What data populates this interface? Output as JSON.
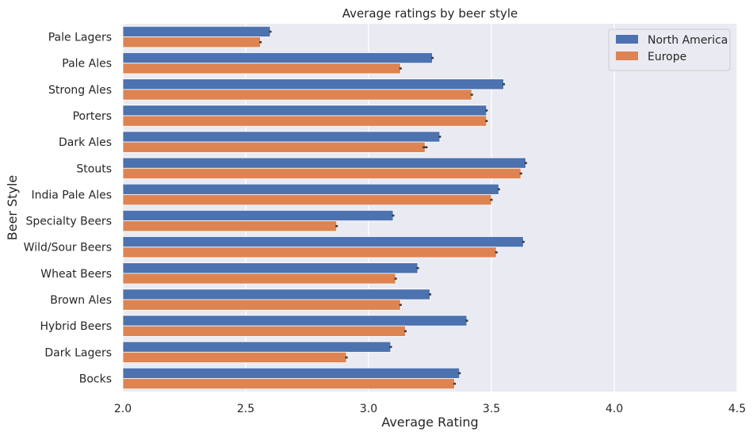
{
  "chart_data": {
    "type": "bar",
    "orientation": "horizontal",
    "title": "Average ratings by beer style",
    "xlabel": "Average Rating",
    "ylabel": "Beer Style",
    "xlim": [
      2.0,
      4.5
    ],
    "xticks": [
      "2.0",
      "2.5",
      "3.0",
      "3.5",
      "4.0",
      "4.5"
    ],
    "grid": true,
    "legend_position": "top-right",
    "categories": [
      "Pale Lagers",
      "Pale Ales",
      "Strong Ales",
      "Porters",
      "Dark Ales",
      "Stouts",
      "India Pale Ales",
      "Specialty Beers",
      "Wild/Sour Beers",
      "Wheat Beers",
      "Brown Ales",
      "Hybrid Beers",
      "Dark Lagers",
      "Bocks"
    ],
    "series": [
      {
        "name": "North America",
        "color": "#4c72b0",
        "values": [
          2.6,
          3.26,
          3.55,
          3.48,
          3.29,
          3.64,
          3.53,
          3.1,
          3.63,
          3.2,
          3.25,
          3.4,
          3.09,
          3.37
        ],
        "errors": [
          0.005,
          0.0,
          0.005,
          0.005,
          0.005,
          0.0,
          0.0,
          0.005,
          0.005,
          0.005,
          0.005,
          0.005,
          0.005,
          0.005
        ]
      },
      {
        "name": "Europe",
        "color": "#dd8452",
        "values": [
          2.56,
          3.13,
          3.42,
          3.48,
          3.23,
          3.62,
          3.5,
          2.87,
          3.52,
          3.11,
          3.13,
          3.15,
          2.91,
          3.35
        ],
        "errors": [
          0.005,
          0.005,
          0.005,
          0.005,
          0.01,
          0.005,
          0.005,
          0.005,
          0.005,
          0.005,
          0.005,
          0.005,
          0.005,
          0.005
        ]
      }
    ]
  },
  "colors": {
    "plot_background": "#eaeaf2",
    "grid": "#ffffff",
    "error_bar": "#3d3d3d"
  }
}
